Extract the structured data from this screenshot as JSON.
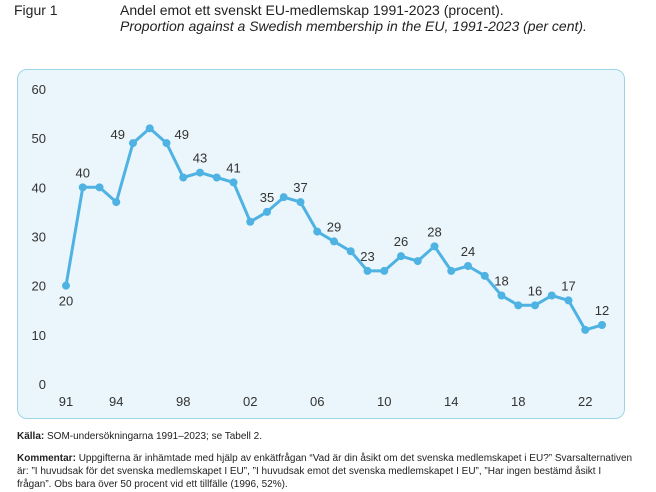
{
  "figure": {
    "label": "Figur 1",
    "title_sv": "Andel emot ett svenskt EU-medlemskap 1991-2023 (procent).",
    "title_en": "Proportion against a Swedish membership in the EU, 1991-2023 (per cent)."
  },
  "chart_data": {
    "type": "line",
    "title": "Andel emot ett svenskt EU-medlemskap 1991-2023 (procent).",
    "xlabel": "",
    "ylabel": "",
    "ylim": [
      0,
      60
    ],
    "yticks": [
      "0",
      "10",
      "20",
      "30",
      "40",
      "50",
      "60"
    ],
    "xticks": [
      {
        "year": 1991,
        "label": "91"
      },
      {
        "year": 1994,
        "label": "94"
      },
      {
        "year": 1998,
        "label": "98"
      },
      {
        "year": 2002,
        "label": "02"
      },
      {
        "year": 2006,
        "label": "06"
      },
      {
        "year": 2010,
        "label": "10"
      },
      {
        "year": 2014,
        "label": "14"
      },
      {
        "year": 2018,
        "label": "18"
      },
      {
        "year": 2022,
        "label": "22"
      }
    ],
    "color": "#4eb2e3",
    "series": [
      {
        "name": "Emot EU-medlemskap",
        "x": [
          1991,
          1992,
          1993,
          1994,
          1995,
          1996,
          1997,
          1998,
          1999,
          2000,
          2001,
          2002,
          2003,
          2004,
          2005,
          2006,
          2007,
          2008,
          2009,
          2010,
          2011,
          2012,
          2013,
          2014,
          2015,
          2016,
          2017,
          2018,
          2019,
          2020,
          2021,
          2022,
          2023
        ],
        "values": [
          20,
          40,
          40,
          37,
          49,
          52,
          49,
          42,
          43,
          42,
          41,
          33,
          35,
          38,
          37,
          31,
          29,
          27,
          23,
          23,
          26,
          25,
          28,
          23,
          24,
          22,
          18,
          16,
          16,
          18,
          17,
          11,
          12
        ]
      }
    ],
    "data_labels": [
      {
        "year": 1991,
        "value": 20,
        "text": "20",
        "pos": "below"
      },
      {
        "year": 1992,
        "value": 40,
        "text": "40",
        "pos": "above"
      },
      {
        "year": 1995,
        "value": 49,
        "text": "49",
        "pos": "left"
      },
      {
        "year": 1997,
        "value": 49,
        "text": "49",
        "pos": "right"
      },
      {
        "year": 1999,
        "value": 43,
        "text": "43",
        "pos": "above"
      },
      {
        "year": 2001,
        "value": 41,
        "text": "41",
        "pos": "above"
      },
      {
        "year": 2003,
        "value": 35,
        "text": "35",
        "pos": "above"
      },
      {
        "year": 2005,
        "value": 37,
        "text": "37",
        "pos": "above"
      },
      {
        "year": 2007,
        "value": 29,
        "text": "29",
        "pos": "above"
      },
      {
        "year": 2009,
        "value": 23,
        "text": "23",
        "pos": "above"
      },
      {
        "year": 2011,
        "value": 26,
        "text": "26",
        "pos": "above"
      },
      {
        "year": 2013,
        "value": 28,
        "text": "28",
        "pos": "above"
      },
      {
        "year": 2015,
        "value": 24,
        "text": "24",
        "pos": "above"
      },
      {
        "year": 2017,
        "value": 18,
        "text": "18",
        "pos": "above"
      },
      {
        "year": 2019,
        "value": 16,
        "text": "16",
        "pos": "above"
      },
      {
        "year": 2021,
        "value": 17,
        "text": "17",
        "pos": "above"
      },
      {
        "year": 2023,
        "value": 12,
        "text": "12",
        "pos": "above"
      }
    ]
  },
  "source": {
    "label": "Källa:",
    "text": "SOM-undersökningarna 1991–2023; se Tabell 2."
  },
  "comment": {
    "label": "Kommentar:",
    "text": "Uppgifterna är inhämtade med hjälp av enkätfrågan “Vad är din åsikt om det svenska medlemskapet i EU?” Svarsalternativen är: ”I huvudsak för det svenska medlemskapet I EU”, ”I huvudsak emot det svenska medlemskapet I EU”, ”Har ingen bestämd åsikt I frågan”. Obs bara över 50 procent vid ett tillfälle (1996, 52%)."
  }
}
